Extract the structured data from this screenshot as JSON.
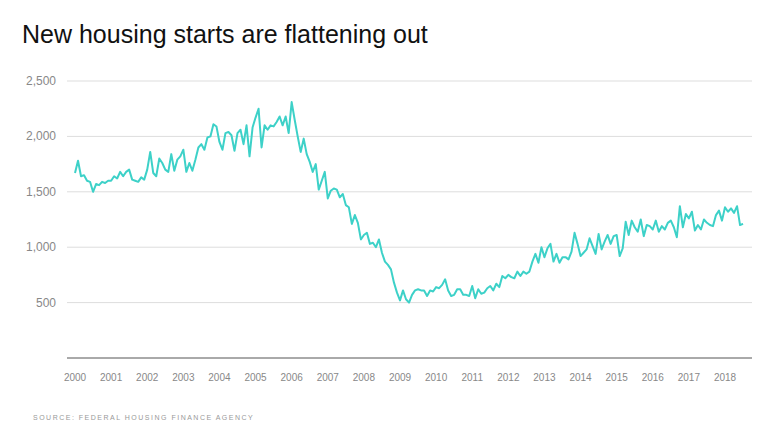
{
  "chart_data": {
    "type": "line",
    "title": "New housing starts are flattening out",
    "source": "SOURCE: FEDERAL HOUSING FINANCE AGENCY",
    "color": "#3dd1c8",
    "grid": true,
    "ylim": [
      0,
      2500
    ],
    "yticks": [
      500,
      {
        "value": 1000,
        "label": "1,000"
      },
      {
        "value": 1500,
        "label": "1,500"
      },
      {
        "value": 2000,
        "label": "2,000"
      },
      {
        "value": 2500,
        "label": "2,500"
      }
    ],
    "categories": [
      "2000",
      null,
      null,
      null,
      null,
      null,
      null,
      null,
      null,
      null,
      null,
      null,
      "2001",
      null,
      null,
      null,
      null,
      null,
      null,
      null,
      null,
      null,
      null,
      null,
      "2002",
      null,
      null,
      null,
      null,
      null,
      null,
      null,
      null,
      null,
      null,
      null,
      "2003",
      null,
      null,
      null,
      null,
      null,
      null,
      null,
      null,
      null,
      null,
      null,
      "2004",
      null,
      null,
      null,
      null,
      null,
      null,
      null,
      null,
      null,
      null,
      null,
      "2005",
      null,
      null,
      null,
      null,
      null,
      null,
      null,
      null,
      null,
      null,
      null,
      "2006",
      null,
      null,
      null,
      null,
      null,
      null,
      null,
      null,
      null,
      null,
      null,
      "2007",
      null,
      null,
      null,
      null,
      null,
      null,
      null,
      null,
      null,
      null,
      null,
      "2008",
      null,
      null,
      null,
      null,
      null,
      null,
      null,
      null,
      null,
      null,
      null,
      "2009",
      null,
      null,
      null,
      null,
      null,
      null,
      null,
      null,
      null,
      null,
      null,
      "2010",
      null,
      null,
      null,
      null,
      null,
      null,
      null,
      null,
      null,
      null,
      null,
      "2011",
      null,
      null,
      null,
      null,
      null,
      null,
      null,
      null,
      null,
      null,
      null,
      "2012",
      null,
      null,
      null,
      null,
      null,
      null,
      null,
      null,
      null,
      null,
      null,
      "2013",
      null,
      null,
      null,
      null,
      null,
      null,
      null,
      null,
      null,
      null,
      null,
      "2014",
      null,
      null,
      null,
      null,
      null,
      null,
      null,
      null,
      null,
      null,
      null,
      "2015",
      null,
      null,
      null,
      null,
      null,
      null,
      null,
      null,
      null,
      null,
      null,
      "2016",
      null,
      null,
      null,
      null,
      null,
      null,
      null,
      null,
      null,
      null,
      null,
      "2017",
      null,
      null,
      null,
      null,
      null,
      null,
      null,
      null,
      null,
      null,
      null,
      "2018",
      null,
      null,
      null,
      null,
      null,
      null
    ],
    "values": [
      1670,
      1780,
      1640,
      1650,
      1600,
      1590,
      1500,
      1570,
      1560,
      1590,
      1580,
      1600,
      1600,
      1640,
      1620,
      1680,
      1640,
      1680,
      1700,
      1610,
      1600,
      1590,
      1630,
      1610,
      1700,
      1860,
      1670,
      1640,
      1800,
      1760,
      1700,
      1680,
      1840,
      1690,
      1790,
      1820,
      1880,
      1680,
      1760,
      1690,
      1790,
      1900,
      1930,
      1880,
      1990,
      2000,
      2110,
      2090,
      1950,
      1880,
      2030,
      2040,
      2010,
      1870,
      2030,
      2060,
      1930,
      2100,
      1820,
      2080,
      2170,
      2250,
      1900,
      2100,
      2060,
      2100,
      2090,
      2130,
      2180,
      2100,
      2180,
      2030,
      2310,
      2150,
      2000,
      1860,
      1980,
      1840,
      1770,
      1680,
      1750,
      1520,
      1600,
      1680,
      1440,
      1510,
      1530,
      1520,
      1450,
      1480,
      1380,
      1360,
      1210,
      1290,
      1220,
      1070,
      1110,
      1130,
      1030,
      1040,
      1000,
      1070,
      950,
      870,
      840,
      800,
      680,
      590,
      520,
      610,
      530,
      500,
      570,
      610,
      620,
      610,
      610,
      560,
      610,
      600,
      640,
      630,
      660,
      710,
      610,
      560,
      570,
      620,
      620,
      570,
      570,
      560,
      650,
      540,
      620,
      580,
      590,
      630,
      650,
      610,
      670,
      640,
      740,
      720,
      750,
      730,
      720,
      780,
      740,
      780,
      760,
      780,
      870,
      940,
      860,
      1000,
      910,
      990,
      1030,
      870,
      940,
      860,
      910,
      910,
      890,
      960,
      1130,
      1030,
      920,
      950,
      980,
      1080,
      1010,
      940,
      1120,
      980,
      1050,
      1110,
      1030,
      1100,
      1110,
      920,
      990,
      1230,
      1110,
      1240,
      1180,
      1140,
      1250,
      1100,
      1200,
      1190,
      1160,
      1240,
      1140,
      1190,
      1160,
      1220,
      1240,
      1180,
      1090,
      1370,
      1180,
      1300,
      1260,
      1320,
      1150,
      1200,
      1160,
      1250,
      1220,
      1200,
      1190,
      1290,
      1330,
      1240,
      1360,
      1320,
      1350,
      1310,
      1370,
      1200,
      1210
    ]
  }
}
